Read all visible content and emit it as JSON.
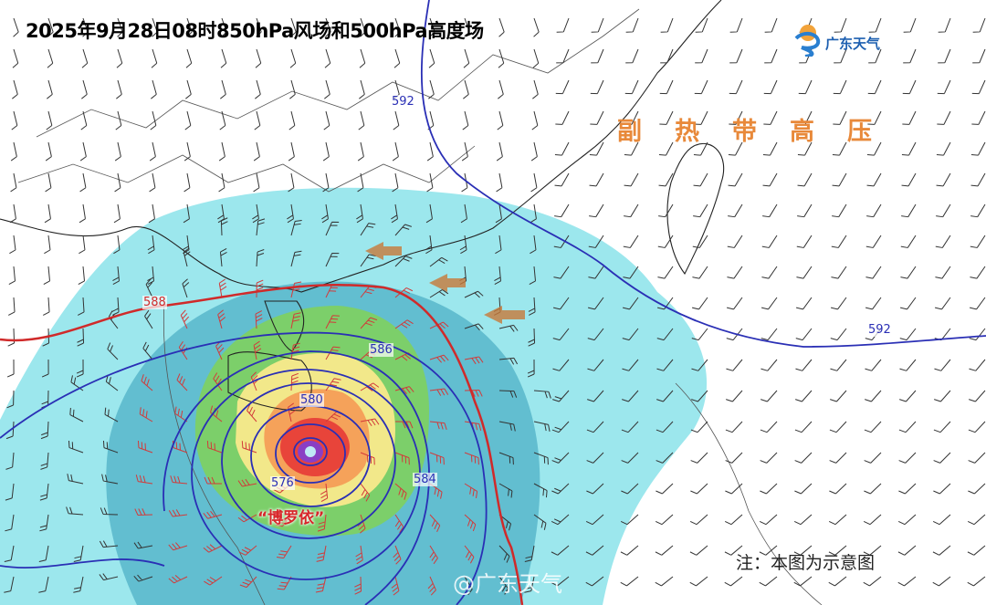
{
  "title": "2025年9月28日08时850hPa风场和500hPa高度场",
  "logo": {
    "text": "广东天气",
    "icon": "sun-wave-logo-icon"
  },
  "annotation": {
    "subtropical_high": "副热带高压",
    "typhoon_name": "“博罗依”"
  },
  "contour_labels": {
    "blue_592_top": "592",
    "blue_592_right": "592",
    "red_588": "588",
    "blue_586": "586",
    "blue_580": "580",
    "blue_584": "584",
    "blue_576": "576"
  },
  "note": "注：本图为示意图",
  "watermark": "@广东天气",
  "colors": {
    "geopotential_500hpa": "#2a2fb5",
    "contour_588": "#d02a2a",
    "subtropical_high_label": "#e8893a",
    "typhoon_name": "#d8262a",
    "wind_cyan": "#8be3ea",
    "wind_teal": "#4fb0c6",
    "wind_green": "#7ccf6a",
    "wind_yellow": "#f2e88a",
    "wind_orange": "#f5a25a",
    "wind_red": "#e8443a"
  }
}
